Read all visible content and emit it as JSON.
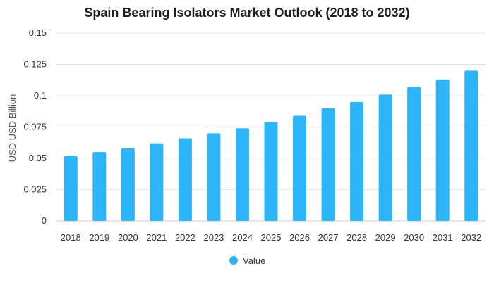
{
  "chart_data": {
    "type": "bar",
    "title": "Spain Bearing Isolators Market Outlook (2018 to 2032)",
    "xlabel": "",
    "ylabel": "USD USD Billion",
    "categories": [
      "2018",
      "2019",
      "2020",
      "2021",
      "2022",
      "2023",
      "2024",
      "2025",
      "2026",
      "2027",
      "2028",
      "2029",
      "2030",
      "2031",
      "2032"
    ],
    "series": [
      {
        "name": "Value",
        "values": [
          0.052,
          0.055,
          0.058,
          0.062,
          0.066,
          0.07,
          0.074,
          0.079,
          0.084,
          0.09,
          0.095,
          0.101,
          0.107,
          0.113,
          0.12
        ]
      }
    ],
    "ylim": [
      0,
      0.15
    ],
    "yticks": [
      "0",
      "0.025",
      "0.05",
      "0.075",
      "0.1",
      "0.125",
      "0.15"
    ],
    "grid": true,
    "legend_position": "bottom",
    "colors": {
      "bar": "#2db5f9",
      "grid": "#e6e6e6",
      "axis": "#cccccc",
      "text": "#333333"
    }
  }
}
